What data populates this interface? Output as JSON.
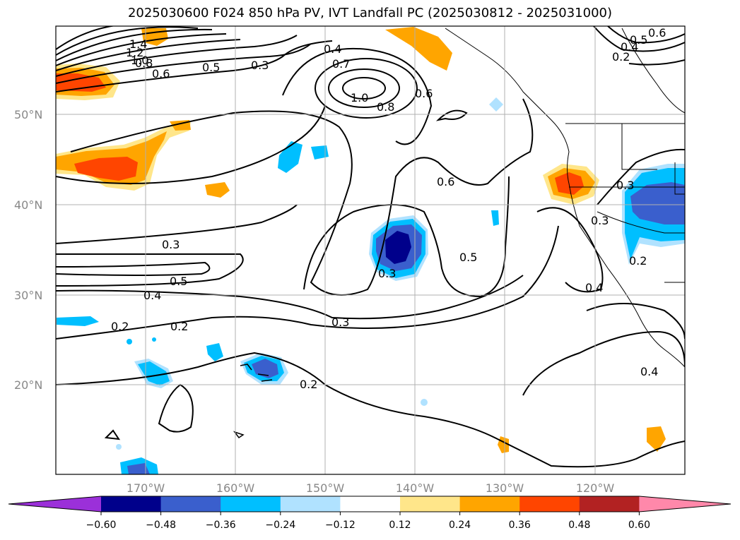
{
  "title": "2025030600 F024 850 hPa PV, IVT Landfall PC (2025030812 - 2025031000)",
  "latitude_labels": [
    "50°N",
    "40°N",
    "30°N",
    "20°N"
  ],
  "longitude_labels": [
    "170°W",
    "160°W",
    "150°W",
    "140°W",
    "130°W",
    "120°W"
  ],
  "contour_labels": [
    "1.4",
    "1.2",
    "1.0",
    "0.8",
    "0.6",
    "0.5",
    "0.3",
    "0.4",
    "0.7",
    "1.0",
    "0.8",
    "0.6",
    "0.6",
    "0.3",
    "0.5",
    "0.4",
    "0.2",
    "0.2",
    "0.3",
    "0.5",
    "0.3",
    "0.4",
    "0.2",
    "0.3",
    "0.4",
    "0.6",
    "0.5",
    "0.4",
    "0.2",
    "0.3",
    "0.2"
  ],
  "colorbar": {
    "ticks": [
      "−0.60",
      "−0.48",
      "−0.36",
      "−0.24",
      "−0.12",
      "0.12",
      "0.24",
      "0.36",
      "0.48",
      "0.60"
    ],
    "colors": [
      "#9b30d9",
      "#00008b",
      "#3a5fcd",
      "#00bfff",
      "#b0e2ff",
      "#ffffff",
      "#ffe68a",
      "#ffa500",
      "#ff4500",
      "#b22222",
      "#ff88aa"
    ]
  }
}
